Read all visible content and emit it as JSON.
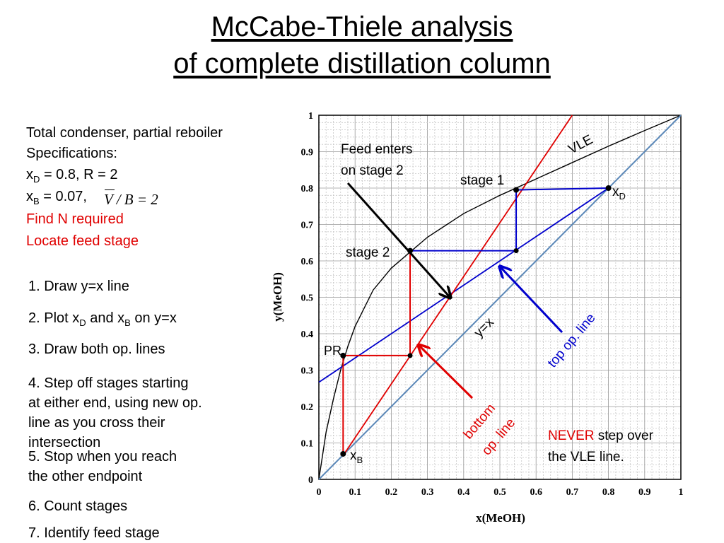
{
  "title": {
    "line1": "McCabe-Thiele analysis",
    "line2": "of complete distillation column"
  },
  "specs": {
    "line1": "Total condenser, partial reboiler",
    "line2": "Specifications:",
    "xd_sym": "x",
    "xd_sub": "D",
    "xd_rest": " = 0.8, R = 2",
    "xb_sym": "x",
    "xb_sub": "B",
    "xb_rest": " = 0.07,",
    "ratio": "V / B = 2",
    "task1": "Find N required",
    "task2": "Locate feed stage"
  },
  "steps": {
    "s1": "1. Draw y=x line",
    "s2_a": "2. Plot x",
    "s2_sub1": "D",
    "s2_b": " and x",
    "s2_sub2": "B",
    "s2_c": " on y=x",
    "s3": "3. Draw both op. lines",
    "s4_l1": "4. Step off stages starting",
    "s4_l2": "at either end, using new op.",
    "s4_l3": "line as you cross their",
    "s4_l4": "intersection",
    "s5_l1": "5. Stop when you reach",
    "s5_l2": "the other endpoint",
    "s6": "6. Count stages",
    "s7": "7. Identify feed stage"
  },
  "plot": {
    "xlabel": "x(MeOH)",
    "ylabel": "y(MeOH)",
    "ticks": [
      "0",
      "0.1",
      "0.2",
      "0.3",
      "0.4",
      "0.5",
      "0.6",
      "0.7",
      "0.8",
      "0.9",
      "1"
    ],
    "labels": {
      "vle": "VLE",
      "yx": "y=x",
      "feed_l1": "Feed enters",
      "feed_l2": "on stage 2",
      "stage1": "stage 1",
      "stage2": "stage 2",
      "pr": "PR",
      "xd_sym": "x",
      "xd_sub": "D",
      "xb_sym": "x",
      "xb_sub": "B",
      "top_op": "top op. line",
      "bottom_l1": "bottom",
      "bottom_l2": "op. line",
      "never": "NEVER",
      "never_rest": " step over",
      "never_l2": "the VLE line."
    },
    "colors": {
      "vle": "#000000",
      "diagonal": "#5b88b8",
      "top_op": "#0000cc",
      "bottom_op": "#e00000"
    }
  },
  "chart_data": {
    "type": "line",
    "xlabel": "x(MeOH)",
    "ylabel": "y(MeOH)",
    "xlim": [
      0,
      1
    ],
    "ylim": [
      0,
      1
    ],
    "grid": true,
    "series": [
      {
        "name": "VLE",
        "x": [
          0,
          0.02,
          0.04,
          0.06,
          0.08,
          0.1,
          0.15,
          0.2,
          0.3,
          0.4,
          0.5,
          0.6,
          0.7,
          0.8,
          0.9,
          1.0
        ],
        "y": [
          0,
          0.13,
          0.22,
          0.3,
          0.365,
          0.42,
          0.52,
          0.58,
          0.665,
          0.73,
          0.78,
          0.825,
          0.87,
          0.915,
          0.958,
          1.0
        ]
      },
      {
        "name": "y=x",
        "x": [
          0,
          1
        ],
        "y": [
          0,
          1
        ]
      },
      {
        "name": "top op. line",
        "x": [
          0,
          0.8
        ],
        "y": [
          0.2667,
          0.8
        ]
      },
      {
        "name": "bottom op. line",
        "x": [
          0.07,
          0.7
        ],
        "y": [
          0.07,
          1.0
        ]
      }
    ],
    "stages": [
      {
        "x": [
          0.8,
          0.545,
          0.545
        ],
        "y": [
          0.8,
          0.795,
          0.628
        ]
      },
      {
        "x": [
          0.545,
          0.252,
          0.252
        ],
        "y": [
          0.628,
          0.628,
          0.34
        ]
      },
      {
        "x": [
          0.252,
          0.067,
          0.067
        ],
        "y": [
          0.34,
          0.34,
          0.07
        ]
      }
    ],
    "points": [
      {
        "label": "xD",
        "x": 0.8,
        "y": 0.8
      },
      {
        "label": "stage 1",
        "x": 0.545,
        "y": 0.795
      },
      {
        "label": "stage 2",
        "x": 0.252,
        "y": 0.628
      },
      {
        "label": "PR",
        "x": 0.067,
        "y": 0.34
      },
      {
        "label": "xB",
        "x": 0.067,
        "y": 0.07
      }
    ]
  }
}
